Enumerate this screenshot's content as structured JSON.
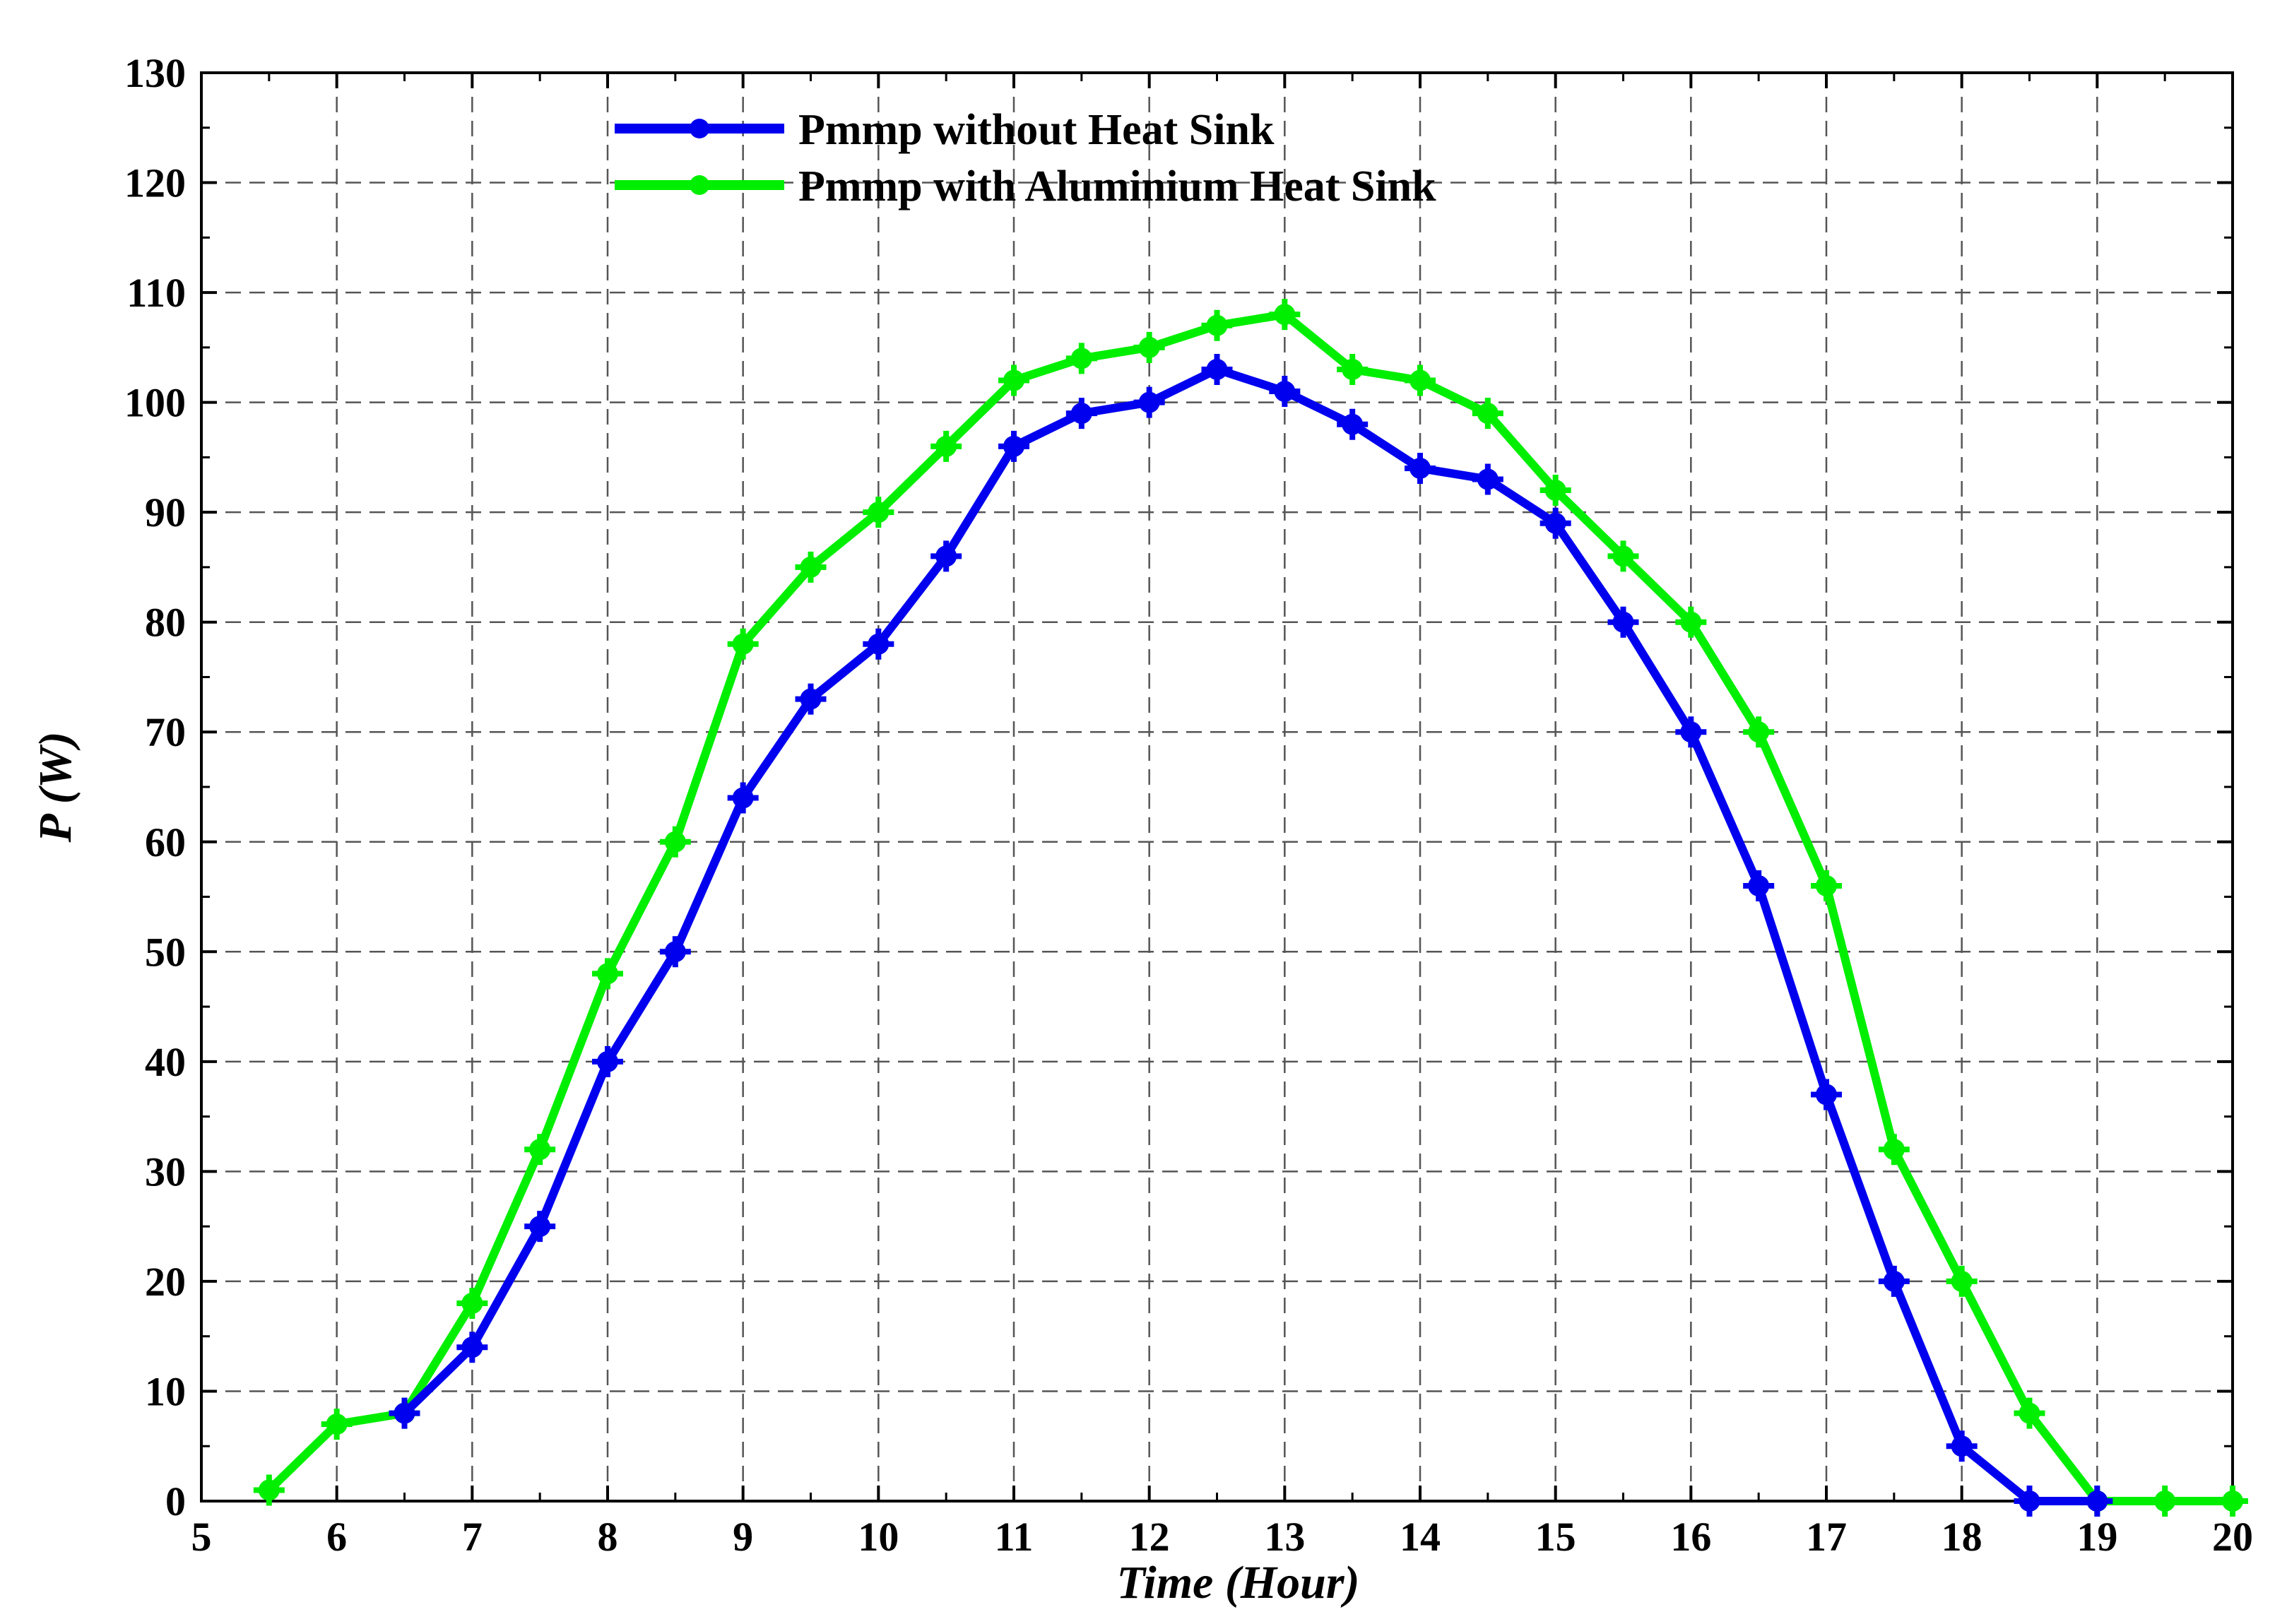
{
  "chart_data": {
    "type": "line",
    "xlabel": "Time (Hour)",
    "ylabel": "P (W)",
    "xlim": [
      5,
      20
    ],
    "ylim": [
      0,
      130
    ],
    "xticks": [
      5,
      6,
      7,
      8,
      9,
      10,
      11,
      12,
      13,
      14,
      15,
      16,
      17,
      18,
      19,
      20
    ],
    "yticks": [
      0,
      10,
      20,
      30,
      40,
      50,
      60,
      70,
      80,
      90,
      100,
      110,
      120,
      130
    ],
    "grid": true,
    "legend_position": "top-center",
    "series": [
      {
        "name": "Pmmp without Heat Sink",
        "color": "#0000ee",
        "x": [
          6.5,
          7,
          7.5,
          8,
          8.5,
          9,
          9.5,
          10,
          10.5,
          11,
          11.5,
          12,
          12.5,
          13,
          13.5,
          14,
          14.5,
          15,
          15.5,
          16,
          16.5,
          17,
          17.5,
          18,
          18.5,
          19
        ],
        "y": [
          8,
          14,
          25,
          40,
          50,
          64,
          73,
          78,
          86,
          96,
          99,
          100,
          103,
          101,
          98,
          94,
          93,
          89,
          80,
          70,
          56,
          37,
          20,
          5,
          0,
          0
        ]
      },
      {
        "name": "Pmmp with Aluminium Heat Sink",
        "color": "#00ee00",
        "x": [
          5.5,
          6,
          6.5,
          7,
          7.5,
          8,
          8.5,
          9,
          9.5,
          10,
          10.5,
          11,
          11.5,
          12,
          12.5,
          13,
          13.5,
          14,
          14.5,
          15,
          15.5,
          16,
          16.5,
          17,
          17.5,
          18,
          18.5,
          19,
          19.5,
          20
        ],
        "y": [
          1,
          7,
          8,
          18,
          32,
          48,
          60,
          78,
          85,
          90,
          96,
          102,
          104,
          105,
          107,
          108,
          103,
          102,
          99,
          92,
          86,
          80,
          70,
          56,
          32,
          20,
          8,
          0,
          0,
          0
        ]
      }
    ]
  }
}
